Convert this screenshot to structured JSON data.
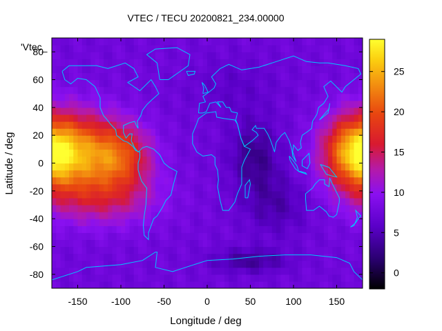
{
  "chart_data": {
    "type": "heatmap",
    "title": "VTEC / TECU 20200821_234.00000",
    "xlabel": "Longitude / deg",
    "ylabel": "Latitude / deg",
    "key_label": "'Vtec_",
    "xlim": [
      -180,
      180
    ],
    "ylim": [
      -90,
      90
    ],
    "x_ticks": [
      -150,
      -100,
      -50,
      0,
      50,
      100,
      150
    ],
    "y_ticks": [
      -80,
      -60,
      -40,
      -20,
      0,
      20,
      40,
      60,
      80
    ],
    "colorbar": {
      "range": [
        -2,
        29
      ],
      "ticks": [
        0,
        5,
        10,
        15,
        20,
        25
      ]
    },
    "grid": false,
    "lon_step": 5,
    "lat_step": 5,
    "features": [
      {
        "lon": -155,
        "lat": 8,
        "sx": 35,
        "sy": 20,
        "amp": 14
      },
      {
        "lon": -100,
        "lat": 5,
        "sx": 25,
        "sy": 16,
        "amp": 10
      },
      {
        "lon": -120,
        "lat": -25,
        "sx": 45,
        "sy": 14,
        "amp": 6
      },
      {
        "lon": 170,
        "lat": 8,
        "sx": 25,
        "sy": 18,
        "amp": 13
      },
      {
        "lon": 55,
        "lat": 5,
        "sx": 20,
        "sy": 18,
        "amp": -4.5
      },
      {
        "lon": 80,
        "lat": -30,
        "sx": 25,
        "sy": 15,
        "amp": -3
      },
      {
        "lon": 50,
        "lat": -70,
        "sx": 30,
        "sy": 6,
        "amp": -4
      },
      {
        "lon": 30,
        "lat": 55,
        "sx": 35,
        "sy": 15,
        "amp": -1.5
      }
    ],
    "base_value": 7.5
  },
  "coastlines": [
    [
      [
        -168,
        66
      ],
      [
        -160,
        70
      ],
      [
        -140,
        70
      ],
      [
        -128,
        70
      ],
      [
        -115,
        68
      ],
      [
        -95,
        72
      ],
      [
        -85,
        68
      ],
      [
        -80,
        62
      ],
      [
        -92,
        58
      ],
      [
        -85,
        55
      ],
      [
        -78,
        52
      ],
      [
        -65,
        60
      ],
      [
        -60,
        55
      ],
      [
        -56,
        50
      ],
      [
        -65,
        45
      ],
      [
        -70,
        42
      ],
      [
        -75,
        38
      ],
      [
        -77,
        34
      ],
      [
        -81,
        30
      ],
      [
        -80,
        25
      ],
      [
        -82,
        27
      ],
      [
        -84,
        30
      ],
      [
        -90,
        29
      ],
      [
        -97,
        27
      ],
      [
        -97,
        22
      ],
      [
        -94,
        18
      ],
      [
        -90,
        21
      ],
      [
        -87,
        21
      ],
      [
        -88,
        16
      ],
      [
        -84,
        11
      ],
      [
        -80,
        8
      ],
      [
        -78,
        9
      ],
      [
        -75,
        11
      ],
      [
        -70,
        12
      ],
      [
        -62,
        10
      ],
      [
        -55,
        6
      ],
      [
        -50,
        0
      ],
      [
        -44,
        -3
      ],
      [
        -35,
        -6
      ],
      [
        -39,
        -15
      ],
      [
        -42,
        -23
      ],
      [
        -48,
        -27
      ],
      [
        -52,
        -32
      ],
      [
        -58,
        -38
      ],
      [
        -62,
        -40
      ],
      [
        -65,
        -45
      ],
      [
        -68,
        -50
      ],
      [
        -68,
        -55
      ],
      [
        -73,
        -52
      ],
      [
        -74,
        -45
      ],
      [
        -73,
        -38
      ],
      [
        -71,
        -30
      ],
      [
        -70,
        -18
      ],
      [
        -76,
        -13
      ],
      [
        -80,
        -5
      ],
      [
        -80,
        0
      ],
      [
        -78,
        4
      ],
      [
        -78,
        8
      ],
      [
        -83,
        9
      ],
      [
        -86,
        12
      ],
      [
        -92,
        15
      ],
      [
        -97,
        16
      ],
      [
        -105,
        20
      ],
      [
        -106,
        24
      ],
      [
        -112,
        28
      ],
      [
        -117,
        32
      ],
      [
        -120,
        34
      ],
      [
        -124,
        40
      ],
      [
        -124,
        47
      ],
      [
        -130,
        55
      ],
      [
        -140,
        60
      ],
      [
        -150,
        61
      ],
      [
        -158,
        57
      ],
      [
        -165,
        60
      ],
      [
        -168,
        66
      ]
    ],
    [
      [
        -55,
        60
      ],
      [
        -45,
        60
      ],
      [
        -22,
        70
      ],
      [
        -20,
        78
      ],
      [
        -35,
        83
      ],
      [
        -60,
        82
      ],
      [
        -70,
        78
      ],
      [
        -58,
        72
      ],
      [
        -55,
        60
      ]
    ],
    [
      [
        -10,
        36
      ],
      [
        -9,
        43
      ],
      [
        -2,
        44
      ],
      [
        -5,
        48
      ],
      [
        2,
        51
      ],
      [
        8,
        54
      ],
      [
        10,
        57
      ],
      [
        5,
        62
      ],
      [
        15,
        68
      ],
      [
        25,
        71
      ],
      [
        40,
        67
      ],
      [
        60,
        69
      ],
      [
        80,
        73
      ],
      [
        100,
        77
      ],
      [
        115,
        73
      ],
      [
        130,
        72
      ],
      [
        140,
        72
      ],
      [
        160,
        70
      ],
      [
        175,
        68
      ],
      [
        178,
        64
      ],
      [
        170,
        60
      ],
      [
        160,
        55
      ],
      [
        156,
        51
      ],
      [
        143,
        59
      ],
      [
        135,
        55
      ],
      [
        140,
        48
      ],
      [
        135,
        43
      ],
      [
        129,
        40
      ],
      [
        127,
        35
      ],
      [
        122,
        30
      ],
      [
        121,
        25
      ],
      [
        117,
        23
      ],
      [
        110,
        20
      ],
      [
        108,
        15
      ],
      [
        109,
        11
      ],
      [
        105,
        9
      ],
      [
        100,
        13
      ],
      [
        99,
        8
      ],
      [
        103,
        1
      ],
      [
        99,
        5
      ],
      [
        98,
        10
      ],
      [
        95,
        16
      ],
      [
        90,
        22
      ],
      [
        86,
        20
      ],
      [
        80,
        15
      ],
      [
        78,
        8
      ],
      [
        73,
        17
      ],
      [
        70,
        21
      ],
      [
        66,
        25
      ],
      [
        57,
        25
      ],
      [
        56,
        27
      ],
      [
        52,
        24
      ],
      [
        57,
        22
      ],
      [
        59,
        20
      ],
      [
        52,
        16
      ],
      [
        43,
        12
      ],
      [
        39,
        18
      ],
      [
        35,
        28
      ],
      [
        33,
        31
      ],
      [
        35,
        36
      ],
      [
        28,
        37
      ],
      [
        26,
        40
      ],
      [
        22,
        40
      ],
      [
        18,
        44
      ],
      [
        12,
        44
      ],
      [
        16,
        40
      ],
      [
        10,
        44
      ],
      [
        3,
        43
      ],
      [
        -1,
        37
      ],
      [
        -5,
        36
      ],
      [
        -10,
        36
      ]
    ],
    [
      [
        -17,
        21
      ],
      [
        -17,
        14
      ],
      [
        -12,
        8
      ],
      [
        -5,
        5
      ],
      [
        5,
        6
      ],
      [
        9,
        4
      ],
      [
        9,
        -1
      ],
      [
        12,
        -5
      ],
      [
        13,
        -12
      ],
      [
        12,
        -17
      ],
      [
        15,
        -27
      ],
      [
        18,
        -34
      ],
      [
        25,
        -34
      ],
      [
        32,
        -28
      ],
      [
        35,
        -22
      ],
      [
        40,
        -15
      ],
      [
        40,
        -10
      ],
      [
        40,
        -3
      ],
      [
        43,
        2
      ],
      [
        50,
        10
      ],
      [
        43,
        12
      ],
      [
        39,
        18
      ],
      [
        35,
        28
      ],
      [
        32,
        31
      ],
      [
        20,
        32
      ],
      [
        11,
        33
      ],
      [
        10,
        37
      ],
      [
        -1,
        36
      ],
      [
        -10,
        32
      ],
      [
        -13,
        27
      ],
      [
        -17,
        21
      ]
    ],
    [
      [
        44,
        -25
      ],
      [
        47,
        -25
      ],
      [
        50,
        -15
      ],
      [
        49,
        -12
      ],
      [
        44,
        -16
      ],
      [
        44,
        -25
      ]
    ],
    [
      [
        114,
        -22
      ],
      [
        114,
        -26
      ],
      [
        115,
        -34
      ],
      [
        123,
        -34
      ],
      [
        130,
        -31
      ],
      [
        138,
        -35
      ],
      [
        141,
        -38
      ],
      [
        146,
        -39
      ],
      [
        150,
        -37
      ],
      [
        153,
        -28
      ],
      [
        153,
        -25
      ],
      [
        145,
        -15
      ],
      [
        142,
        -11
      ],
      [
        141,
        -17
      ],
      [
        136,
        -15
      ],
      [
        136,
        -12
      ],
      [
        130,
        -12
      ],
      [
        125,
        -15
      ],
      [
        122,
        -18
      ],
      [
        114,
        -22
      ]
    ],
    [
      [
        166,
        -46
      ],
      [
        172,
        -43
      ],
      [
        174,
        -41
      ],
      [
        178,
        -38
      ],
      [
        172,
        -34
      ],
      [
        174,
        -39
      ],
      [
        170,
        -45
      ],
      [
        166,
        -46
      ]
    ],
    [
      [
        95,
        5
      ],
      [
        98,
        3
      ],
      [
        104,
        -2
      ],
      [
        106,
        -6
      ],
      [
        102,
        -4
      ],
      [
        96,
        2
      ],
      [
        95,
        5
      ]
    ],
    [
      [
        106,
        -6
      ],
      [
        115,
        -8
      ],
      [
        114,
        -7
      ],
      [
        108,
        -6
      ],
      [
        106,
        -6
      ]
    ],
    [
      [
        110,
        2
      ],
      [
        118,
        7
      ],
      [
        119,
        0
      ],
      [
        116,
        -4
      ],
      [
        110,
        -2
      ],
      [
        110,
        2
      ]
    ],
    [
      [
        131,
        -1
      ],
      [
        141,
        -3
      ],
      [
        150,
        -10
      ],
      [
        143,
        -9
      ],
      [
        138,
        -8
      ],
      [
        131,
        -1
      ]
    ],
    [
      [
        130,
        31
      ],
      [
        134,
        34
      ],
      [
        141,
        39
      ],
      [
        142,
        43
      ],
      [
        140,
        36
      ],
      [
        136,
        34
      ],
      [
        130,
        31
      ]
    ],
    [
      [
        -5,
        50
      ],
      [
        1,
        51
      ],
      [
        -3,
        56
      ],
      [
        -6,
        58
      ],
      [
        -4,
        54
      ],
      [
        -5,
        50
      ]
    ],
    [
      [
        -24,
        66
      ],
      [
        -14,
        66
      ],
      [
        -15,
        64
      ],
      [
        -22,
        63
      ],
      [
        -24,
        66
      ]
    ],
    [
      [
        -180,
        -84
      ],
      [
        -150,
        -78
      ],
      [
        -140,
        -75
      ],
      [
        -100,
        -73
      ],
      [
        -75,
        -70
      ],
      [
        -60,
        -64
      ],
      [
        -58,
        -64
      ],
      [
        -60,
        -75
      ],
      [
        -40,
        -78
      ],
      [
        -20,
        -74
      ],
      [
        0,
        -70
      ],
      [
        30,
        -69
      ],
      [
        60,
        -67
      ],
      [
        90,
        -66
      ],
      [
        120,
        -66
      ],
      [
        150,
        -68
      ],
      [
        165,
        -72
      ],
      [
        170,
        -78
      ],
      [
        180,
        -84
      ]
    ]
  ]
}
